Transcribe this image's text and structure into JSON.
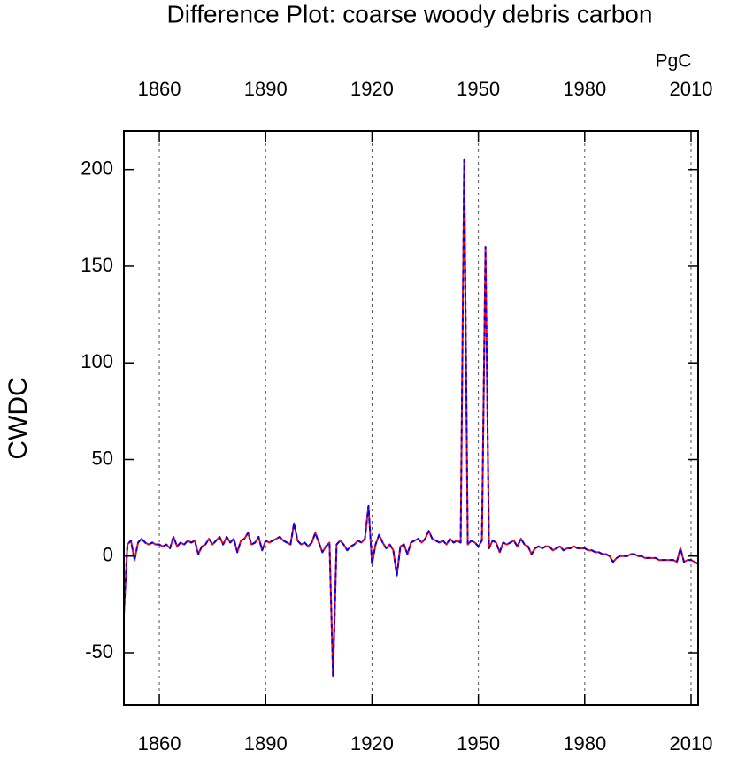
{
  "chart_data": {
    "type": "line",
    "title": "Difference Plot: coarse woody debris carbon",
    "units": "PgC",
    "y_label": "CWDC",
    "x": [
      1850,
      1851,
      1852,
      1853,
      1854,
      1855,
      1856,
      1857,
      1858,
      1859,
      1860,
      1861,
      1862,
      1863,
      1864,
      1865,
      1866,
      1867,
      1868,
      1869,
      1870,
      1871,
      1872,
      1873,
      1874,
      1875,
      1876,
      1877,
      1878,
      1879,
      1880,
      1881,
      1882,
      1883,
      1884,
      1885,
      1886,
      1887,
      1888,
      1889,
      1890,
      1891,
      1892,
      1893,
      1894,
      1895,
      1896,
      1897,
      1898,
      1899,
      1900,
      1901,
      1902,
      1903,
      1904,
      1905,
      1906,
      1907,
      1908,
      1909,
      1910,
      1911,
      1912,
      1913,
      1914,
      1915,
      1916,
      1917,
      1918,
      1919,
      1920,
      1921,
      1922,
      1923,
      1924,
      1925,
      1926,
      1927,
      1928,
      1929,
      1930,
      1931,
      1932,
      1933,
      1934,
      1935,
      1936,
      1937,
      1938,
      1939,
      1940,
      1941,
      1942,
      1943,
      1944,
      1945,
      1946,
      1947,
      1948,
      1949,
      1950,
      1951,
      1952,
      1953,
      1954,
      1955,
      1956,
      1957,
      1958,
      1959,
      1960,
      1961,
      1962,
      1963,
      1964,
      1965,
      1966,
      1967,
      1968,
      1969,
      1970,
      1971,
      1972,
      1973,
      1974,
      1975,
      1976,
      1977,
      1978,
      1979,
      1980,
      1981,
      1982,
      1983,
      1984,
      1985,
      1986,
      1987,
      1988,
      1989,
      1990,
      1991,
      1992,
      1993,
      1994,
      1995,
      1996,
      1997,
      1998,
      1999,
      2000,
      2001,
      2002,
      2003,
      2004,
      2005,
      2006,
      2007,
      2008,
      2009,
      2010,
      2011,
      2012
    ],
    "series": [
      {
        "color": "#ff0000",
        "dash": false,
        "values": [
          -30,
          6,
          8,
          -2,
          7,
          9,
          7,
          6,
          7,
          6,
          6,
          5,
          6,
          4,
          10,
          5,
          7,
          6,
          8,
          7,
          8,
          1,
          5,
          6,
          9,
          6,
          8,
          10,
          6,
          10,
          7,
          9,
          2,
          8,
          9,
          12,
          6,
          7,
          10,
          3,
          8,
          7,
          8,
          9,
          10,
          8,
          7,
          6,
          17,
          8,
          6,
          7,
          5,
          7,
          12,
          7,
          2,
          5,
          7,
          -62,
          6,
          8,
          6,
          3,
          5,
          6,
          8,
          7,
          9,
          26,
          -4,
          6,
          11,
          7,
          4,
          6,
          3,
          -10,
          5,
          6,
          1,
          7,
          8,
          9,
          7,
          9,
          13,
          9,
          8,
          7,
          8,
          6,
          9,
          7,
          8,
          7,
          205,
          6,
          8,
          7,
          5,
          8,
          160,
          4,
          8,
          7,
          2,
          7,
          6,
          7,
          8,
          5,
          9,
          6,
          5,
          1,
          4,
          5,
          4,
          5,
          5,
          3,
          4,
          5,
          3,
          4,
          4,
          5,
          4,
          4,
          4,
          3,
          3,
          2,
          2,
          1,
          1,
          0,
          -3,
          -1,
          0,
          0,
          0,
          1,
          1,
          0,
          0,
          -1,
          -1,
          -1,
          -1,
          -2,
          -2,
          -2,
          -2,
          -2,
          -3,
          4,
          -3,
          -2,
          -2,
          -3,
          -4
        ]
      },
      {
        "color": "#0000ff",
        "dash": true,
        "values": [
          -30,
          6,
          8,
          -2,
          7,
          9,
          7,
          6,
          7,
          6,
          6,
          5,
          6,
          4,
          10,
          5,
          7,
          6,
          8,
          7,
          8,
          1,
          5,
          6,
          9,
          6,
          8,
          10,
          6,
          10,
          7,
          9,
          2,
          8,
          9,
          12,
          6,
          7,
          10,
          3,
          8,
          7,
          8,
          9,
          10,
          8,
          7,
          6,
          17,
          8,
          6,
          7,
          5,
          7,
          12,
          7,
          2,
          5,
          7,
          -62,
          6,
          8,
          6,
          3,
          5,
          6,
          8,
          7,
          9,
          26,
          -4,
          6,
          11,
          7,
          4,
          6,
          3,
          -10,
          5,
          6,
          1,
          7,
          8,
          9,
          7,
          9,
          13,
          9,
          8,
          7,
          8,
          6,
          9,
          7,
          8,
          7,
          205,
          6,
          8,
          7,
          5,
          8,
          160,
          4,
          8,
          7,
          2,
          7,
          6,
          7,
          8,
          5,
          9,
          6,
          5,
          1,
          4,
          5,
          4,
          5,
          5,
          3,
          4,
          5,
          3,
          4,
          4,
          5,
          4,
          4,
          4,
          3,
          3,
          2,
          2,
          1,
          1,
          0,
          -3,
          -1,
          0,
          0,
          0,
          1,
          1,
          0,
          0,
          -1,
          -1,
          -1,
          -1,
          -2,
          -2,
          -2,
          -2,
          -2,
          -3,
          4,
          -3,
          -2,
          -2,
          -3,
          -4
        ]
      }
    ],
    "xlim": [
      1850,
      2012
    ],
    "xticks": [
      1860,
      1890,
      1920,
      1950,
      1980,
      2010
    ],
    "ylim": [
      -77,
      220
    ],
    "yticks": [
      -50,
      0,
      50,
      100,
      150,
      200
    ],
    "grid": true,
    "top_axis_color": "#0000ff",
    "bottom_axis_color": "#ff0000"
  }
}
